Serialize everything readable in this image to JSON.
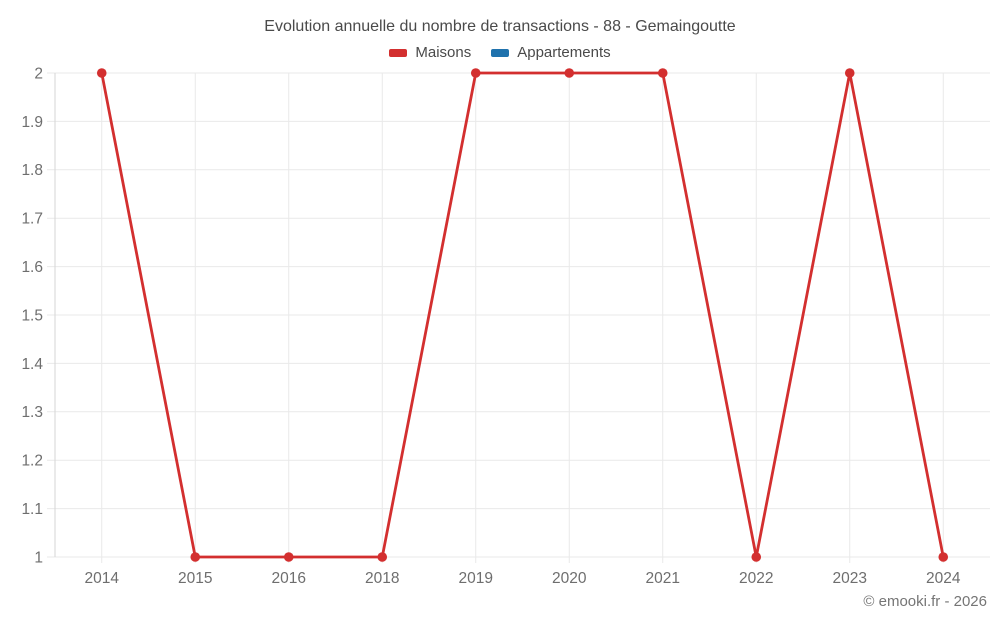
{
  "title": "Evolution annuelle du nombre de transactions - 88 - Gemaingoutte",
  "legend": {
    "items": [
      {
        "label": "Maisons",
        "color": "#d32f2f"
      },
      {
        "label": "Appartements",
        "color": "#1f72ad"
      }
    ]
  },
  "watermark": "© emooki.fr - 2026",
  "colors": {
    "grid": "#e9e9e9",
    "axis": "#d6d6d6",
    "tick_text": "#6e6e6e",
    "title_text": "#4a4a4a",
    "series_maisons": "#d32f2f",
    "series_appartements": "#1f72ad"
  },
  "chart_data": {
    "type": "line",
    "title": "Evolution annuelle du nombre de transactions - 88 - Gemaingoutte",
    "categories": [
      "2014",
      "2015",
      "2016",
      "2018",
      "2019",
      "2020",
      "2021",
      "2022",
      "2023",
      "2024"
    ],
    "series": [
      {
        "name": "Maisons",
        "color": "#d32f2f",
        "values": [
          2,
          1,
          1,
          1,
          2,
          2,
          2,
          1,
          2,
          1
        ]
      },
      {
        "name": "Appartements",
        "color": "#1f72ad",
        "values": []
      }
    ],
    "xlabel": "",
    "ylabel": "",
    "ylim": [
      1,
      2
    ],
    "ytick_step": 0.1,
    "yticks": [
      "1",
      "1.1",
      "1.2",
      "1.3",
      "1.4",
      "1.5",
      "1.6",
      "1.7",
      "1.8",
      "1.9",
      "2"
    ],
    "grid": true,
    "legend_position": "top",
    "marker": "circle"
  }
}
